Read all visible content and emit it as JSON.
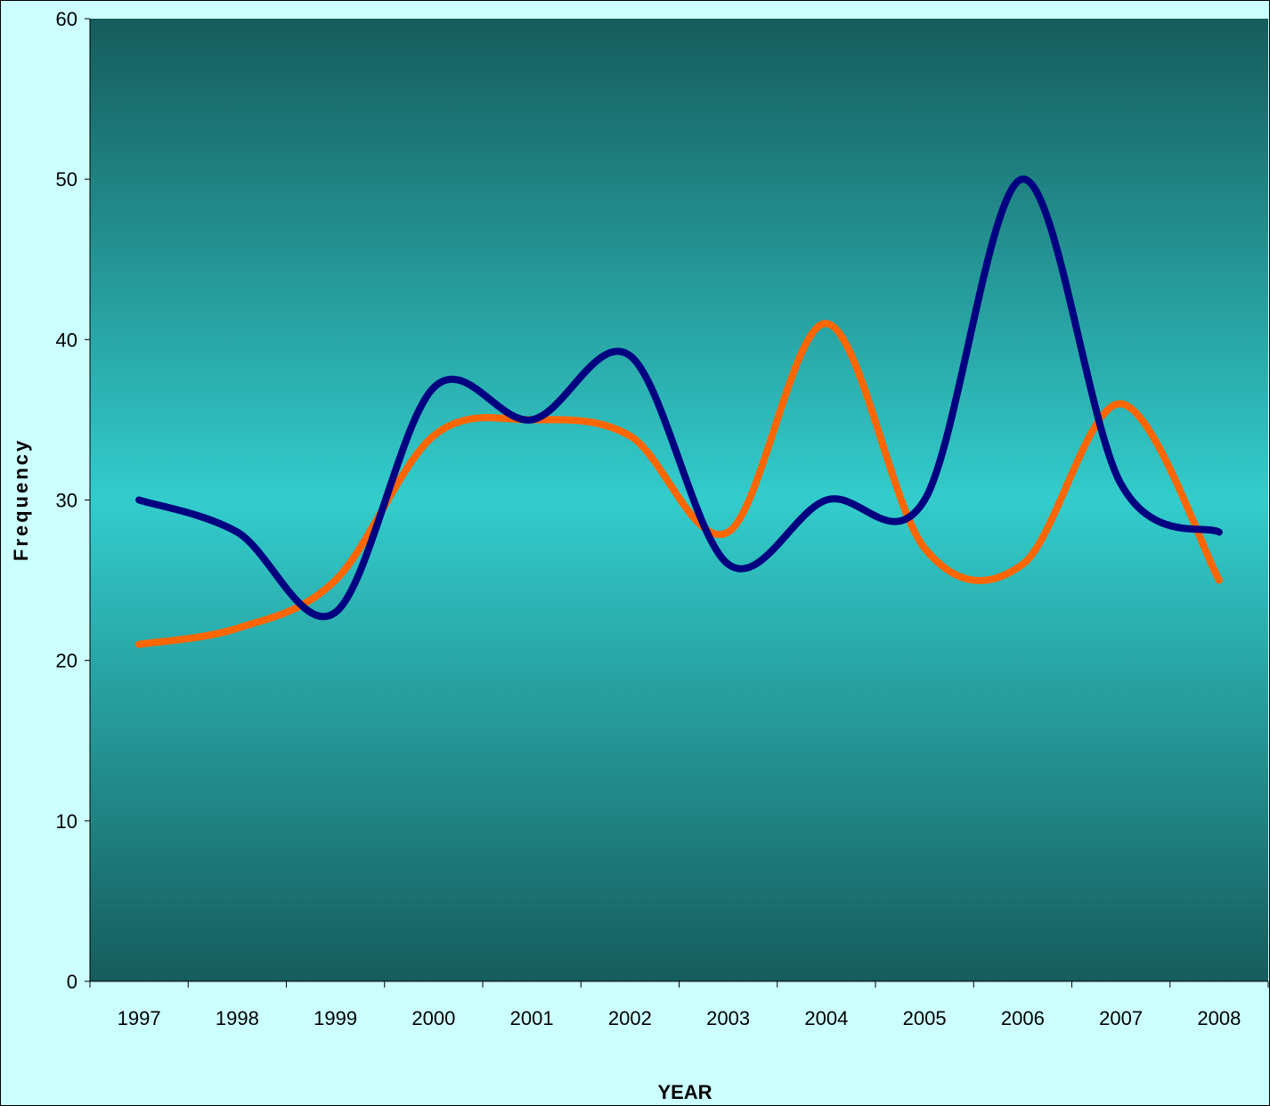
{
  "chart_data": {
    "type": "line",
    "title": "",
    "xlabel": "YEAR",
    "ylabel": "Frequency",
    "categories": [
      "1997",
      "1998",
      "1999",
      "2000",
      "2001",
      "2002",
      "2003",
      "2004",
      "2005",
      "2006",
      "2007",
      "2008"
    ],
    "ylim": [
      0,
      60
    ],
    "yticks": [
      0,
      10,
      20,
      30,
      40,
      50,
      60
    ],
    "grid": false,
    "legend": "none",
    "smooth": true,
    "series": [
      {
        "values": [
          30,
          28,
          23,
          37,
          35,
          39,
          26,
          30,
          30,
          50,
          31,
          28
        ],
        "color": "#000080"
      },
      {
        "values": [
          21,
          22,
          25,
          34,
          35,
          34,
          28,
          41,
          27,
          26,
          36,
          25
        ],
        "color": "#ff6600"
      }
    ],
    "colors": {
      "background": "#ccffff",
      "plot_gradient_edge": "#165c5c",
      "plot_gradient_mid": "#33cccc"
    }
  }
}
